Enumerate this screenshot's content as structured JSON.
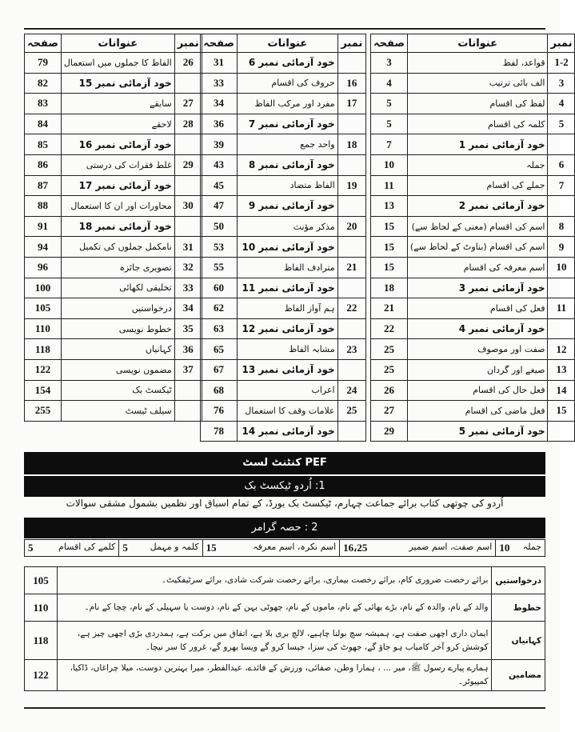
{
  "headers": {
    "number": "نمبر",
    "title": "عنوانات",
    "page": "صفحہ"
  },
  "tables": [
    {
      "rows": [
        {
          "num": "1-2",
          "title": "قواعد، لفظ",
          "page": "3",
          "bold": false
        },
        {
          "num": "3",
          "title": "الف بائی ترتیب",
          "page": "4",
          "bold": false
        },
        {
          "num": "4",
          "title": "لفظ کی اقسام",
          "page": "5",
          "bold": false
        },
        {
          "num": "5",
          "title": "کلمہ کی اقسام",
          "page": "5",
          "bold": false
        },
        {
          "num": "",
          "title": "خود آزمائی نمبر 1",
          "page": "7",
          "bold": true
        },
        {
          "num": "6",
          "title": "جملہ",
          "page": "10",
          "bold": false
        },
        {
          "num": "7",
          "title": "جملے کی اقسام",
          "page": "11",
          "bold": false
        },
        {
          "num": "",
          "title": "خود آزمائی نمبر 2",
          "page": "13",
          "bold": true
        },
        {
          "num": "8",
          "title": "اسم کی اقسام (معنی کے لحاظ سے)",
          "page": "15",
          "bold": false
        },
        {
          "num": "9",
          "title": "اسم کی اقسام (بناوٹ کے لحاظ سے)",
          "page": "15",
          "bold": false
        },
        {
          "num": "10",
          "title": "اسم معرفہ کی اقسام",
          "page": "15",
          "bold": false
        },
        {
          "num": "",
          "title": "خود آزمائی نمبر 3",
          "page": "18",
          "bold": true
        },
        {
          "num": "11",
          "title": "فعل کی اقسام",
          "page": "21",
          "bold": false
        },
        {
          "num": "",
          "title": "خود آزمائی نمبر 4",
          "page": "22",
          "bold": true
        },
        {
          "num": "12",
          "title": "صفت اور موصوف",
          "page": "25",
          "bold": false
        },
        {
          "num": "13",
          "title": "صیغے اور گردان",
          "page": "25",
          "bold": false
        },
        {
          "num": "14",
          "title": "فعل حال کی اقسام",
          "page": "26",
          "bold": false
        },
        {
          "num": "15",
          "title": "فعل ماضی کی اقسام",
          "page": "27",
          "bold": false
        },
        {
          "num": "",
          "title": "خود آزمائی نمبر 5",
          "page": "29",
          "bold": true
        }
      ]
    },
    {
      "rows": [
        {
          "num": "",
          "title": "خود آزمائی نمبر 6",
          "page": "31",
          "bold": true
        },
        {
          "num": "16",
          "title": "حروف کی اقسام",
          "page": "33",
          "bold": false
        },
        {
          "num": "17",
          "title": "مفرد اور مرکب الفاظ",
          "page": "34",
          "bold": false
        },
        {
          "num": "",
          "title": "خود آزمائی نمبر 7",
          "page": "36",
          "bold": true
        },
        {
          "num": "18",
          "title": "واحد جمع",
          "page": "39",
          "bold": false
        },
        {
          "num": "",
          "title": "خود آزمائی نمبر 8",
          "page": "43",
          "bold": true
        },
        {
          "num": "19",
          "title": "الفاظ متضاد",
          "page": "45",
          "bold": false
        },
        {
          "num": "",
          "title": "خود آزمائی نمبر 9",
          "page": "47",
          "bold": true
        },
        {
          "num": "20",
          "title": "مذکر مؤنث",
          "page": "50",
          "bold": false
        },
        {
          "num": "",
          "title": "خود آزمائی نمبر 10",
          "page": "53",
          "bold": true
        },
        {
          "num": "21",
          "title": "مترادف الفاظ",
          "page": "55",
          "bold": false
        },
        {
          "num": "",
          "title": "خود آزمائی نمبر 11",
          "page": "60",
          "bold": true
        },
        {
          "num": "22",
          "title": "ہم آواز الفاظ",
          "page": "62",
          "bold": false
        },
        {
          "num": "",
          "title": "خود آزمائی نمبر 12",
          "page": "63",
          "bold": true
        },
        {
          "num": "23",
          "title": "مشابہ الفاظ",
          "page": "65",
          "bold": false
        },
        {
          "num": "",
          "title": "خود آزمائی نمبر 13",
          "page": "67",
          "bold": true
        },
        {
          "num": "24",
          "title": "اعراب",
          "page": "68",
          "bold": false
        },
        {
          "num": "25",
          "title": "علامات وقف کا استعمال",
          "page": "76",
          "bold": false
        },
        {
          "num": "",
          "title": "خود آزمائی نمبر 14",
          "page": "78",
          "bold": true
        }
      ]
    },
    {
      "rows": [
        {
          "num": "26",
          "title": "الفاظ کا جملوں میں استعمال",
          "page": "79",
          "bold": false
        },
        {
          "num": "",
          "title": "خود آزمائی نمبر 15",
          "page": "82",
          "bold": true
        },
        {
          "num": "27",
          "title": "سابقے",
          "page": "83",
          "bold": false
        },
        {
          "num": "28",
          "title": "لاحقے",
          "page": "84",
          "bold": false
        },
        {
          "num": "",
          "title": "خود آزمائی نمبر 16",
          "page": "85",
          "bold": true
        },
        {
          "num": "29",
          "title": "غلط فقرات کی درستی",
          "page": "86",
          "bold": false
        },
        {
          "num": "",
          "title": "خود آزمائی نمبر 17",
          "page": "87",
          "bold": true
        },
        {
          "num": "30",
          "title": "محاورات اور ان کا استعمال",
          "page": "88",
          "bold": false
        },
        {
          "num": "",
          "title": "خود آزمائی نمبر 18",
          "page": "91",
          "bold": true
        },
        {
          "num": "31",
          "title": "نامکمل جملوں کی تکمیل",
          "page": "94",
          "bold": false
        },
        {
          "num": "32",
          "title": "تصویری جائزہ",
          "page": "96",
          "bold": false
        },
        {
          "num": "33",
          "title": "تخلیقی لکھائی",
          "page": "100",
          "bold": false
        },
        {
          "num": "34",
          "title": "درخواستیں",
          "page": "105",
          "bold": false
        },
        {
          "num": "35",
          "title": "خطوط نویسی",
          "page": "110",
          "bold": false
        },
        {
          "num": "36",
          "title": "کہانیاں",
          "page": "118",
          "bold": false
        },
        {
          "num": "37",
          "title": "مضمون نویسی",
          "page": "122",
          "bold": false
        },
        {
          "num": "",
          "title": "ٹیکسٹ بک",
          "page": "154",
          "bold": false
        },
        {
          "num": "",
          "title": "سیلف ٹیسٹ",
          "page": "255",
          "bold": false
        }
      ]
    }
  ],
  "pef": {
    "title": "PEF کنٹنٹ لسٹ",
    "section1": "1:  اُردو ٹیکسٹ بک",
    "section1_text": "اُردو کی چوتھی کتاب برائے جماعت چہارم، ٹیکسٹ بک بورڈ، کے تمام اسباق اور نظمیں بشمول مشقی سوالات",
    "section2": "2 : حصہ گرامر",
    "grammar": [
      {
        "label": "جملہ",
        "page": "10"
      },
      {
        "label": "اسم صفت، اسم ضمیر",
        "page": "16،25"
      },
      {
        "label": "اسم نکرہ، اسم معرفہ",
        "page": "15"
      },
      {
        "label": "کلمہ و مہمل",
        "page": "5"
      },
      {
        "label": "کلمے کی اقسام",
        "page": "5"
      }
    ],
    "sections": [
      {
        "label": "درخواستیں",
        "text": "برائے رخصت ضروری کام، برائے رخصت بیماری، برائے رخصت شرکت شادی، برائے سرٹیفکیٹ۔",
        "page": "105"
      },
      {
        "label": "خطوط",
        "text": "والد کے نام، والدہ کے نام، بڑے بھائی کے نام، ماموں کے نام، چھوٹی بہن کے نام، دوست یا سہیلی کے نام، چچا کے نام۔",
        "page": "110"
      },
      {
        "label": "کہانیاں",
        "text": "ایمان داری اچھی صفت ہے، ہمیشہ سچ بولنا چاہیے، لالچ بری بلا ہے، اتفاق میں برکت ہے، ہمدردی بڑی اچھی چیز ہے، کوشش کرو آخر کامیاب ہو جاؤ گے، جھوٹ کی سزا، جیسا کرو گے ویسا بھرو گے، غرور کا سر نیچا۔",
        "page": "118"
      },
      {
        "label": "مضامین",
        "text": "ہمارے پیارے رسول ﷺ، میر ... ، ہمارا وطن، صفائی، ورزش کے فائدے، عیدالفطر، میرا بہترین دوست، میلا چراغاں، ڈاکیا، کمپیوٹر۔",
        "page": "122"
      }
    ]
  }
}
